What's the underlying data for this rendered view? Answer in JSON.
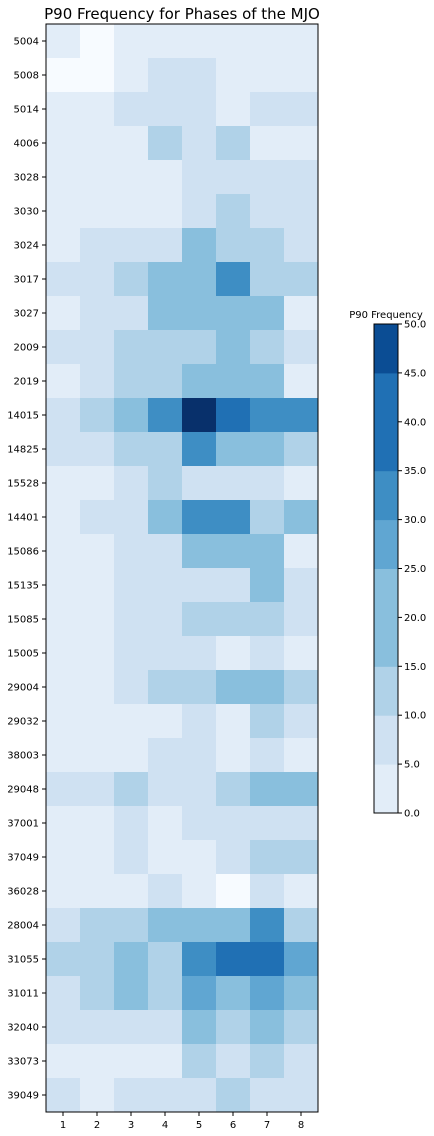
{
  "chart_data": {
    "type": "heatmap",
    "title": "P90 Frequency for Phases of the MJO",
    "x": [
      1,
      2,
      3,
      4,
      5,
      6,
      7,
      8
    ],
    "rows": [
      "5004",
      "5008",
      "5014",
      "4006",
      "3028",
      "3030",
      "3024",
      "3017",
      "3027",
      "2009",
      "2019",
      "14015",
      "14825",
      "15528",
      "14401",
      "15086",
      "15135",
      "15085",
      "15005",
      "29004",
      "29032",
      "38003",
      "29048",
      "37001",
      "37049",
      "36028",
      "28004",
      "31055",
      "31011",
      "32040",
      "33073",
      "39049"
    ],
    "values": [
      [
        2,
        0,
        2,
        2,
        2,
        2,
        2,
        2
      ],
      [
        0,
        0,
        2,
        7,
        7,
        2,
        2,
        2
      ],
      [
        2,
        2,
        7,
        7,
        7,
        2,
        7,
        7
      ],
      [
        2,
        2,
        2,
        12,
        7,
        12,
        2,
        2
      ],
      [
        2,
        2,
        2,
        2,
        7,
        7,
        7,
        7
      ],
      [
        2,
        2,
        2,
        2,
        7,
        12,
        7,
        7
      ],
      [
        2,
        7,
        7,
        7,
        17,
        12,
        12,
        7
      ],
      [
        7,
        7,
        12,
        17,
        22,
        32,
        12,
        12
      ],
      [
        2,
        7,
        7,
        17,
        22,
        22,
        17,
        2
      ],
      [
        7,
        7,
        12,
        12,
        12,
        22,
        12,
        7
      ],
      [
        2,
        7,
        12,
        12,
        17,
        22,
        22,
        2
      ],
      [
        7,
        12,
        17,
        32,
        50,
        37,
        32,
        32
      ],
      [
        7,
        7,
        12,
        12,
        32,
        22,
        17,
        12
      ],
      [
        2,
        2,
        7,
        12,
        7,
        7,
        7,
        2
      ],
      [
        2,
        7,
        7,
        17,
        32,
        32,
        12,
        17
      ],
      [
        2,
        2,
        7,
        7,
        17,
        22,
        17,
        2
      ],
      [
        2,
        2,
        7,
        7,
        7,
        7,
        22,
        7
      ],
      [
        2,
        2,
        7,
        7,
        12,
        12,
        12,
        7
      ],
      [
        2,
        2,
        7,
        7,
        7,
        2,
        7,
        2
      ],
      [
        2,
        2,
        7,
        12,
        12,
        17,
        22,
        12
      ],
      [
        2,
        2,
        2,
        2,
        7,
        2,
        12,
        7
      ],
      [
        2,
        2,
        2,
        7,
        7,
        2,
        7,
        2
      ],
      [
        7,
        7,
        12,
        7,
        7,
        12,
        17,
        17
      ],
      [
        2,
        2,
        7,
        2,
        7,
        7,
        7,
        7
      ],
      [
        2,
        2,
        7,
        2,
        2,
        7,
        12,
        12
      ],
      [
        2,
        2,
        2,
        7,
        2,
        0,
        7,
        2
      ],
      [
        7,
        12,
        12,
        17,
        17,
        17,
        32,
        12
      ],
      [
        12,
        12,
        17,
        12,
        32,
        37,
        37,
        27
      ],
      [
        7,
        12,
        17,
        12,
        27,
        17,
        27,
        17
      ],
      [
        7,
        7,
        7,
        7,
        17,
        12,
        22,
        12
      ],
      [
        2,
        2,
        2,
        2,
        12,
        7,
        12,
        7
      ],
      [
        7,
        2,
        7,
        7,
        7,
        12,
        7,
        7
      ]
    ],
    "colorbar": {
      "label": "P90 Frequency",
      "ticks": [
        "0.0",
        "5.0",
        "10.0",
        "15.0",
        "20.0",
        "25.0",
        "30.0",
        "35.0",
        "40.0",
        "45.0",
        "50.0"
      ],
      "colors": [
        "#e2edf8",
        "#cfe1f2",
        "#b0d2e8",
        "#89bfdd",
        "#89bfdd",
        "#60a6d2",
        "#3e8ec4",
        "#2070b4",
        "#2070b4",
        "#0b4d94",
        "#08306b"
      ],
      "vmin": 0,
      "vmax": 50,
      "min_color": "#f7fbff"
    },
    "grid": false
  }
}
